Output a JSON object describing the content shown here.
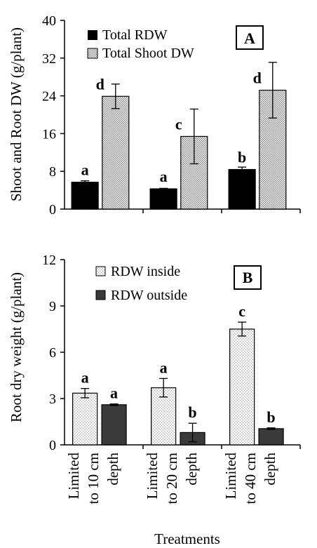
{
  "xlabel": "Treatments",
  "treatment_labels": [
    [
      "Limited",
      "to 10 cm",
      "depth"
    ],
    [
      "Limited",
      "to 20 cm",
      "depth"
    ],
    [
      "Limited",
      "to 40 cm",
      "depth"
    ]
  ],
  "colors": {
    "dark": "#000000",
    "hatch_fill": "#d9d9d9",
    "dark_gray": "#3a3a3a",
    "light_gray": "#e6e6e6"
  },
  "chart_data": [
    {
      "panel": "A",
      "type": "bar",
      "ylabel": "Shoot and Root DW (g/plant)",
      "ylim": [
        0,
        40
      ],
      "yticks": [
        0,
        8,
        16,
        24,
        32,
        40
      ],
      "categories": [
        "Limited to 10 cm depth",
        "Limited to 20 cm depth",
        "Limited to 40 cm depth"
      ],
      "legend_position": "top-left",
      "series": [
        {
          "name": "Total RDW",
          "style": "solid-black",
          "values": [
            5.7,
            4.3,
            8.4
          ],
          "errors": [
            0.3,
            0.1,
            0.5
          ],
          "letters": [
            "a",
            "a",
            "b"
          ]
        },
        {
          "name": "Total Shoot DW",
          "style": "hatched",
          "values": [
            23.9,
            15.4,
            25.2
          ],
          "errors": [
            2.6,
            5.8,
            5.9
          ],
          "letters": [
            "d",
            "c",
            "d"
          ]
        }
      ]
    },
    {
      "panel": "B",
      "type": "bar",
      "ylabel": "Root dry weight  (g/plant)",
      "ylim": [
        0,
        12
      ],
      "yticks": [
        0,
        3,
        6,
        9,
        12
      ],
      "categories": [
        "Limited to 10 cm depth",
        "Limited to 20 cm depth",
        "Limited to 40 cm depth"
      ],
      "legend_position": "top-left",
      "series": [
        {
          "name": "RDW inside",
          "style": "light-pattern",
          "values": [
            3.35,
            3.7,
            7.5
          ],
          "errors": [
            0.3,
            0.6,
            0.45
          ],
          "letters": [
            "a",
            "a",
            "c"
          ]
        },
        {
          "name": "RDW outside",
          "style": "dark-gray",
          "values": [
            2.6,
            0.8,
            1.05
          ],
          "errors": [
            0.05,
            0.6,
            0.05
          ],
          "letters": [
            "a",
            "b",
            "b"
          ]
        }
      ]
    }
  ]
}
